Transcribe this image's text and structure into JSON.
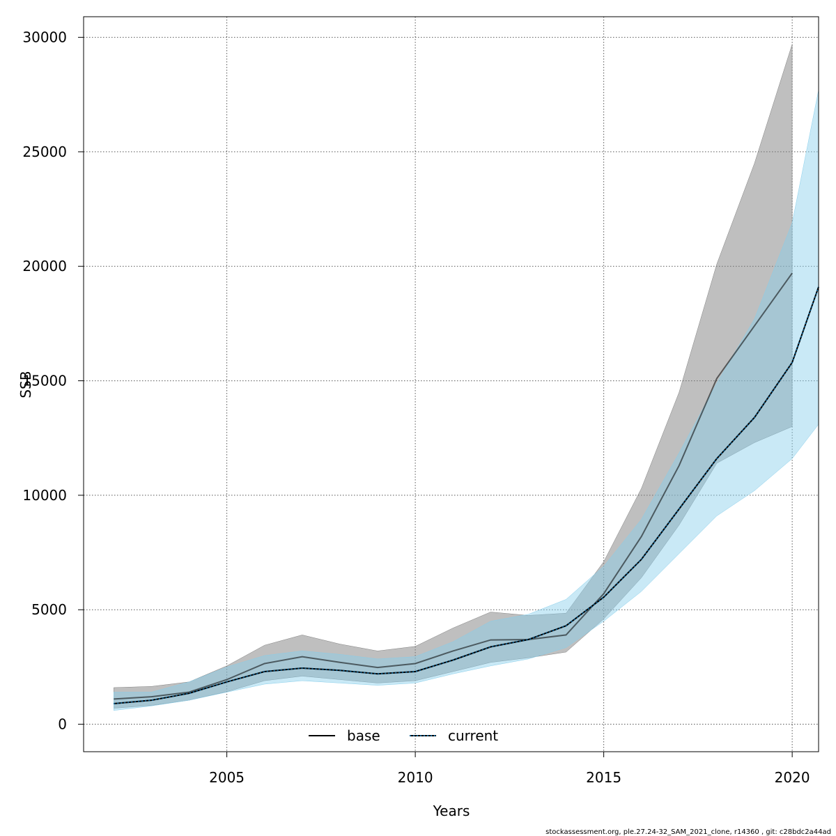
{
  "chart_data": {
    "type": "area",
    "xlabel": "Years",
    "ylabel": "SSB",
    "xlim": [
      2001.2,
      2020.7
    ],
    "ylim": [
      -1200,
      30900
    ],
    "x_ticks": [
      2005,
      2010,
      2015,
      2020
    ],
    "y_ticks": [
      0,
      5000,
      10000,
      15000,
      20000,
      25000,
      30000
    ],
    "grid": true,
    "legend_position": "bottom",
    "series": [
      {
        "name": "base",
        "line_style": "solid",
        "color": "#000000",
        "band_color": "#808080",
        "x": [
          2002,
          2003,
          2004,
          2005,
          2006,
          2007,
          2008,
          2009,
          2010,
          2011,
          2012,
          2013,
          2014,
          2015,
          2016,
          2017,
          2018,
          2019,
          2020
        ],
        "values": [
          1100,
          1200,
          1400,
          1950,
          2650,
          2950,
          2700,
          2480,
          2650,
          3200,
          3680,
          3700,
          3900,
          5700,
          8200,
          11300,
          15100,
          17400,
          19700
        ],
        "lower": [
          700,
          820,
          1050,
          1420,
          1900,
          2100,
          1950,
          1800,
          1900,
          2300,
          2700,
          2900,
          3150,
          4600,
          6400,
          8700,
          11400,
          12300,
          13000
        ],
        "upper": [
          1600,
          1650,
          1850,
          2550,
          3450,
          3900,
          3500,
          3200,
          3400,
          4200,
          4900,
          4750,
          4850,
          7100,
          10300,
          14500,
          20100,
          24500,
          29700
        ]
      },
      {
        "name": "current",
        "line_style": "dotted",
        "color": "#0a5a8a",
        "band_color": "#87ceeb",
        "x": [
          2002,
          2003,
          2004,
          2005,
          2006,
          2007,
          2008,
          2009,
          2010,
          2011,
          2012,
          2013,
          2014,
          2015,
          2016,
          2017,
          2018,
          2019,
          2020,
          2020.7
        ],
        "values": [
          900,
          1050,
          1350,
          1850,
          2300,
          2450,
          2350,
          2200,
          2300,
          2800,
          3380,
          3700,
          4300,
          5550,
          7200,
          9400,
          11600,
          13400,
          15800,
          19100
        ],
        "lower": [
          600,
          800,
          1050,
          1400,
          1750,
          1900,
          1800,
          1700,
          1800,
          2200,
          2550,
          2850,
          3350,
          4500,
          5800,
          7450,
          9100,
          10200,
          11600,
          13100
        ],
        "upper": [
          1400,
          1400,
          1850,
          2500,
          3000,
          3200,
          3050,
          2850,
          2950,
          3600,
          4500,
          4800,
          5450,
          6900,
          8950,
          11850,
          14900,
          17700,
          21900,
          27700
        ]
      }
    ],
    "footer": "stockassessment.org, ple.27.24-32_SAM_2021_clone, r14360 , git: c28bdc2a44ad"
  }
}
